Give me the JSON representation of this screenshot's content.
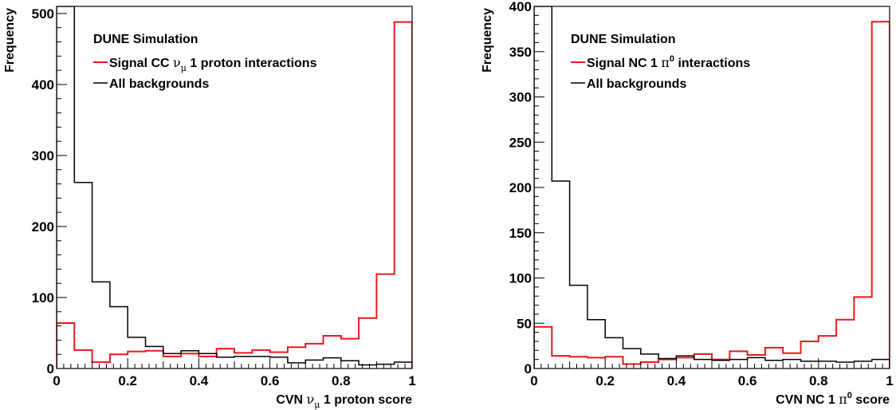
{
  "chart_data": [
    {
      "type": "step",
      "xlabel": {
        "prefix": "CVN ",
        "symbol": "ν",
        "sub": "μ",
        "sup": "",
        "suffix": " 1 proton score"
      },
      "ylabel": "Frequency",
      "xlim": [
        0,
        1
      ],
      "ylim": [
        0,
        510
      ],
      "xticks": [
        "0",
        "0.2",
        "0.4",
        "0.6",
        "0.8",
        "1"
      ],
      "yticks": [
        0,
        100,
        200,
        300,
        400,
        500
      ],
      "legend_title": "DUNE Simulation",
      "bin_edges": [
        0,
        0.05,
        0.1,
        0.15,
        0.2,
        0.25,
        0.3,
        0.35,
        0.4,
        0.45,
        0.5,
        0.55,
        0.6,
        0.65,
        0.7,
        0.75,
        0.8,
        0.85,
        0.9,
        0.95,
        1.0
      ],
      "series": [
        {
          "name": "Signal",
          "legend": {
            "prefix": "Signal CC ",
            "symbol": "ν",
            "sub": "μ",
            "sup": "",
            "suffix": " 1 proton interactions"
          },
          "color": "#e8191c",
          "values": [
            64,
            26,
            9,
            20,
            24,
            25,
            17,
            21,
            17,
            28,
            22,
            26,
            23,
            30,
            35,
            46,
            42,
            71,
            133,
            488
          ]
        },
        {
          "name": "All backgrounds",
          "legend": {
            "prefix": "All backgrounds",
            "symbol": "",
            "sub": "",
            "sup": "",
            "suffix": ""
          },
          "color": "#000000",
          "values": [
            530,
            262,
            122,
            87,
            44,
            31,
            21,
            25,
            21,
            16,
            17,
            17,
            16,
            8,
            12,
            15,
            11,
            5,
            6,
            9
          ]
        }
      ]
    },
    {
      "type": "step",
      "xlabel": {
        "prefix": "CVN NC 1 ",
        "symbol": "π",
        "sub": "",
        "sup": "0",
        "suffix": " score"
      },
      "ylabel": "Frequency",
      "xlim": [
        0,
        1
      ],
      "ylim": [
        0,
        400
      ],
      "xticks": [
        "0",
        "0.2",
        "0.4",
        "0.6",
        "0.8",
        "1"
      ],
      "yticks": [
        0,
        50,
        100,
        150,
        200,
        250,
        300,
        350,
        400
      ],
      "legend_title": "DUNE Simulation",
      "bin_edges": [
        0,
        0.05,
        0.1,
        0.15,
        0.2,
        0.25,
        0.3,
        0.35,
        0.4,
        0.45,
        0.5,
        0.55,
        0.6,
        0.65,
        0.7,
        0.75,
        0.8,
        0.85,
        0.9,
        0.95,
        1.0
      ],
      "series": [
        {
          "name": "Signal",
          "legend": {
            "prefix": "Signal NC 1 ",
            "symbol": "π",
            "sub": "",
            "sup": "0",
            "suffix": " interactions"
          },
          "color": "#e8191c",
          "values": [
            46,
            14,
            13,
            12,
            13,
            5,
            7,
            10,
            12,
            16,
            10,
            19,
            15,
            23,
            17,
            30,
            36,
            54,
            79,
            383
          ]
        },
        {
          "name": "All backgrounds",
          "legend": {
            "prefix": "All backgrounds",
            "symbol": "",
            "sub": "",
            "sup": "",
            "suffix": ""
          },
          "color": "#000000",
          "values": [
            420,
            207,
            92,
            54,
            34,
            22,
            16,
            11,
            14,
            10,
            9,
            10,
            12,
            9,
            10,
            8,
            8,
            7,
            8,
            10
          ]
        }
      ]
    }
  ]
}
